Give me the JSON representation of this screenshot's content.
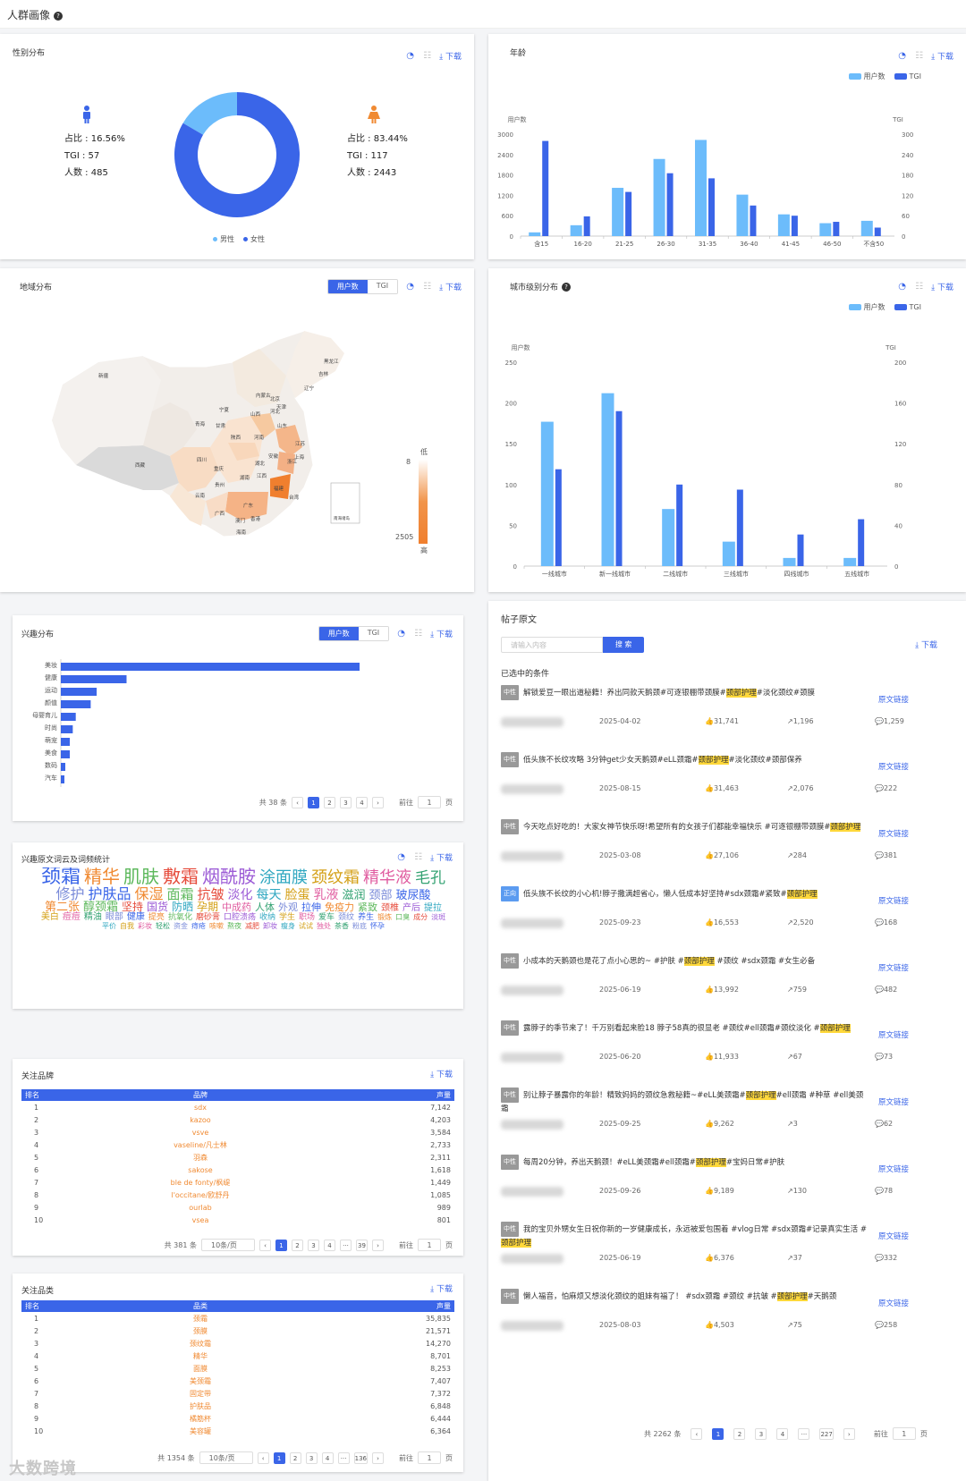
{
  "page": {
    "title": "人群画像"
  },
  "common": {
    "download": "下载",
    "users": "用户数",
    "tgi": "TGI"
  },
  "gender": {
    "title": "性别分布",
    "male": {
      "share": "占比 : 16.56%",
      "tgi": "TGI : 57",
      "count": "人数 : 485"
    },
    "female": {
      "share": "占比 : 83.44%",
      "tgi": "TGI : 117",
      "count": "人数 : 2443"
    },
    "legend": [
      "男性",
      "女性"
    ],
    "colors": {
      "male": "#6cbcfb",
      "female": "#3a65e8"
    },
    "chart_data": {
      "type": "pie",
      "labels": [
        "男性",
        "女性"
      ],
      "values": [
        16.56,
        83.44
      ]
    }
  },
  "age": {
    "title": "年龄",
    "ylabel_left": "用户数",
    "ylabel_right": "TGI",
    "chart_data": {
      "type": "bar",
      "categories": [
        "含15",
        "16-20",
        "21-25",
        "26-30",
        "31-35",
        "36-40",
        "41-45",
        "46-50",
        "不含50"
      ],
      "series": [
        {
          "name": "用户数",
          "values": [
            110,
            320,
            1420,
            2270,
            2830,
            1220,
            640,
            380,
            450
          ]
        },
        {
          "name": "TGI",
          "values": [
            280,
            58,
            130,
            185,
            170,
            90,
            60,
            42,
            25
          ]
        }
      ],
      "ylim_left": [
        0,
        3000
      ],
      "yticks_left": [
        "0",
        "600",
        "1200",
        "1800",
        "2400",
        "3000"
      ],
      "ylim_right": [
        0,
        300
      ],
      "yticks_right": [
        "0",
        "60",
        "120",
        "180",
        "240",
        "300"
      ]
    }
  },
  "region": {
    "title": "地域分布",
    "scale_low": "低",
    "scale_high": "高",
    "scale_min": "8",
    "scale_max": "2505",
    "inset": "南海诸岛",
    "provinces": [
      "黑龙江",
      "吉林",
      "辽宁",
      "内蒙古",
      "北京",
      "天津",
      "河北",
      "山西",
      "山东",
      "新疆",
      "宁夏",
      "甘肃",
      "青海",
      "陕西",
      "河南",
      "江苏",
      "安徽",
      "上海",
      "湖北",
      "浙江",
      "西藏",
      "四川",
      "重庆",
      "贵州",
      "湖南",
      "江西",
      "福建",
      "云南",
      "广西",
      "广东",
      "台湾",
      "澳门",
      "香港",
      "海南"
    ]
  },
  "city": {
    "title": "城市级别分布",
    "ylabel_left": "用户数",
    "ylabel_right": "TGI",
    "chart_data": {
      "type": "bar",
      "categories": [
        "一线城市",
        "新一线城市",
        "二线城市",
        "三线城市",
        "四线城市",
        "五线城市"
      ],
      "series": [
        {
          "name": "用户数",
          "values": [
            177,
            212,
            70,
            30,
            10,
            10
          ]
        },
        {
          "name": "TGI",
          "values": [
            95,
            152,
            80,
            75,
            31,
            46
          ]
        }
      ],
      "ylim_left": [
        0,
        250
      ],
      "yticks_left": [
        "0",
        "50",
        "100",
        "150",
        "200",
        "250"
      ],
      "ylim_right": [
        0,
        200
      ],
      "yticks_right": [
        "0",
        "40",
        "80",
        "120",
        "160",
        "200"
      ]
    }
  },
  "interest": {
    "title": "兴趣分布",
    "chart_data": {
      "type": "bar",
      "orientation": "horizontal",
      "categories": [
        "美妆",
        "健康",
        "运动",
        "颜值",
        "母婴育儿",
        "时尚",
        "萌宠",
        "美食",
        "数码",
        "汽车"
      ],
      "values": [
        100,
        22,
        12,
        10,
        5,
        4,
        3,
        3,
        1.5,
        1.2
      ]
    },
    "pager": {
      "total": "共 38 条",
      "pages": [
        "1",
        "2",
        "3",
        "4"
      ],
      "goto": "前往",
      "page_unit": "页",
      "current": "1"
    }
  },
  "wordcloud": {
    "title": "兴趣原文词云及词频统计",
    "words": [
      "颈霜",
      "精华",
      "肌肤",
      "敷霜",
      "烟酰胺",
      "涂面膜",
      "颈纹霜",
      "精华液",
      "毛孔",
      "修护",
      "护肤品",
      "保湿",
      "面霜",
      "抗皱",
      "淡化",
      "每天",
      "脸蛋",
      "乳液",
      "滋润",
      "颈部",
      "玻尿酸",
      "第二张",
      "醇颈霜",
      "坚持",
      "国货",
      "防晒",
      "孕期",
      "中成药",
      "人体",
      "外观",
      "拉伸",
      "免疫力",
      "紧致",
      "颈椎",
      "产后",
      "提拉",
      "美白",
      "痘痘",
      "精油",
      "眼部",
      "健康",
      "提亮",
      "抗氧化",
      "磨砂膏",
      "口腔溃疡",
      "收纳",
      "学生",
      "职场",
      "爱车",
      "颈纹",
      "养生",
      "锻炼",
      "口臭",
      "成分",
      "淡斑",
      "平价",
      "自我",
      "彩妆",
      "轻松",
      "资金",
      "痔疮",
      "咳嗽",
      "熬夜",
      "减肥",
      "卸妆",
      "瘦身",
      "试试",
      "独处",
      "茶香",
      "粉底",
      "怀孕"
    ]
  },
  "brands": {
    "title": "关注品牌",
    "headers": [
      "排名",
      "品牌",
      "声量"
    ],
    "rows": [
      [
        "1",
        "sdx",
        "7,142"
      ],
      [
        "2",
        "kazoo",
        "4,203"
      ],
      [
        "3",
        "vsve",
        "3,584"
      ],
      [
        "4",
        "vaseline/凡士林",
        "2,733"
      ],
      [
        "5",
        "羽森",
        "2,311"
      ],
      [
        "6",
        "sakose",
        "1,618"
      ],
      [
        "7",
        "ble de fonty/枫缇",
        "1,449"
      ],
      [
        "8",
        "l'occitane/欧舒丹",
        "1,085"
      ],
      [
        "9",
        "ourlab",
        "989"
      ],
      [
        "10",
        "vsea",
        "801"
      ]
    ],
    "pager": {
      "total": "共 381 条",
      "size": "10条/页",
      "pages": [
        "1",
        "2",
        "3",
        "4",
        "···",
        "39"
      ],
      "goto": "前往",
      "page_unit": "页",
      "current": "1"
    }
  },
  "categories": {
    "title": "关注品类",
    "headers": [
      "排名",
      "品类",
      "声量"
    ],
    "rows": [
      [
        "1",
        "颈霜",
        "35,835"
      ],
      [
        "2",
        "颈膜",
        "21,571"
      ],
      [
        "3",
        "颈纹霜",
        "14,270"
      ],
      [
        "4",
        "精华",
        "8,701"
      ],
      [
        "5",
        "面膜",
        "8,253"
      ],
      [
        "6",
        "美颈霜",
        "7,407"
      ],
      [
        "7",
        "固定带",
        "7,372"
      ],
      [
        "8",
        "护肤品",
        "6,848"
      ],
      [
        "9",
        "橘筋杯",
        "6,444"
      ],
      [
        "10",
        "美容罐",
        "6,364"
      ]
    ],
    "pager": {
      "total": "共 1354 条",
      "size": "10条/页",
      "pages": [
        "1",
        "2",
        "3",
        "4",
        "···",
        "136"
      ],
      "goto": "前往",
      "page_unit": "页",
      "current": "1"
    }
  },
  "posts": {
    "title": "帖子原文",
    "search_placeholder": "请输入内容",
    "search_button": "搜 索",
    "selected_conditions": "已选中的条件",
    "link_label": "原文链接",
    "items": [
      {
        "tag": "中性",
        "pre": "解锁爱豆一眼出道秘籍！养出同款天鹅颈#可逐银棚带颈膜#",
        "hl": "颈部护理",
        "post": "#淡化颈纹#颈膜",
        "date": "2025-04-02",
        "likes": "31,741",
        "shares": "1,196",
        "comments": "1,259"
      },
      {
        "tag": "中性",
        "pre": "低头族不长纹攻略 3分钟get少女天鹅颈#eLL颈霜#",
        "hl": "颈部护理",
        "post": "#淡化颈纹#颈部保养",
        "date": "2025-08-15",
        "likes": "31,463",
        "shares": "2,076",
        "comments": "222"
      },
      {
        "tag": "中性",
        "pre": "今天吃点好吃的！大家女神节快乐呀!希望所有的女孩子们都能幸福快乐 #可逐银棚带颈膜#",
        "hl": "颈部护理",
        "post": "",
        "date": "2025-03-08",
        "likes": "27,106",
        "shares": "284",
        "comments": "381"
      },
      {
        "tag": "正向",
        "pre": "低头族不长纹的小心机!脖子撒满超省心，懒人低成本好坚持#sdx颈霜#紧致#",
        "hl": "颈部护理",
        "post": "",
        "date": "2025-09-23",
        "likes": "16,553",
        "shares": "2,520",
        "comments": "168"
      },
      {
        "tag": "中性",
        "pre": "小成本的天鹅颈也是花了点小心思的~ #护肤 #",
        "hl": "颈部护理",
        "post": " #颈纹 #sdx颈霜 #女生必备",
        "date": "2025-06-19",
        "likes": "13,992",
        "shares": "759",
        "comments": "482"
      },
      {
        "tag": "中性",
        "pre": "露脖子的季节来了！千万别看起来脸18 脖子58真的很显老 #颈纹#ell颈霜#颈纹淡化 #",
        "hl": "颈部护理",
        "post": "",
        "date": "2025-06-20",
        "likes": "11,933",
        "shares": "67",
        "comments": "73"
      },
      {
        "tag": "中性",
        "pre": "别让脖子暴露你的年龄！精致妈妈的颈纹急救秘籍~#eLL美颈霜#",
        "hl": "颈部护理",
        "post": "#ell颈霜 #种草 #ell美颈霜",
        "date": "2025-09-25",
        "likes": "9,262",
        "shares": "3",
        "comments": "62"
      },
      {
        "tag": "中性",
        "pre": "每周20分钟，养出天鹅颈！#eLL美颈霜#ell颈霜#",
        "hl": "颈部护理",
        "post": "#宝妈日常#护肤",
        "date": "2025-09-26",
        "likes": "9,189",
        "shares": "130",
        "comments": "78"
      },
      {
        "tag": "中性",
        "pre": "我的宝贝外甥女生日祝你新的一岁健康成长，永远被爱包围着 #vlog日常 #sdx颈霜#记录真实生活 #",
        "hl": "颈部护理",
        "post": "",
        "date": "2025-06-19",
        "likes": "6,376",
        "shares": "37",
        "comments": "332"
      },
      {
        "tag": "中性",
        "pre": "懒人福音，怕麻烦又想淡化颈纹的姐妹有福了！ #sdx颈霜 #颈纹 #抗皱 #",
        "hl": "颈部护理",
        "post": "#天鹅颈",
        "date": "2025-08-03",
        "likes": "4,503",
        "shares": "75",
        "comments": "258"
      }
    ],
    "pager": {
      "total": "共 2262 条",
      "pages": [
        "1",
        "2",
        "3",
        "4",
        "···",
        "227"
      ],
      "goto": "前往",
      "page_unit": "页",
      "current": "1"
    }
  },
  "watermark": "大数跨境"
}
